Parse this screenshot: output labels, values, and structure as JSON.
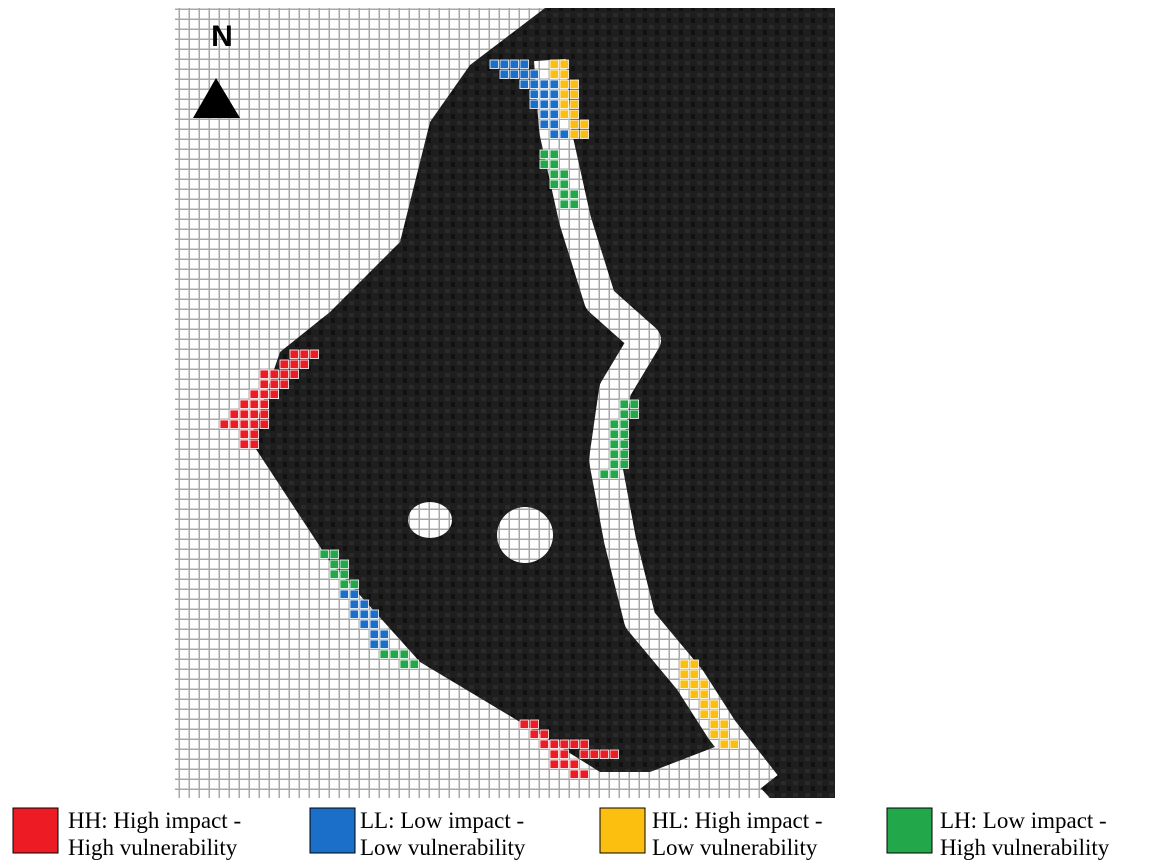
{
  "north_label": "N",
  "legend": [
    {
      "line1": "HH: High impact -",
      "line2": "High vulnerability",
      "color": "#ed1c24"
    },
    {
      "line1": "LL: Low impact -",
      "line2": "Low vulnerability",
      "color": "#1b6fc8"
    },
    {
      "line1": "HL: High impact -",
      "line2": "Low vulnerability",
      "color": "#fcbf10"
    },
    {
      "line1": "LH: Low impact -",
      "line2": "High vulnerability",
      "color": "#22a84a"
    }
  ]
}
